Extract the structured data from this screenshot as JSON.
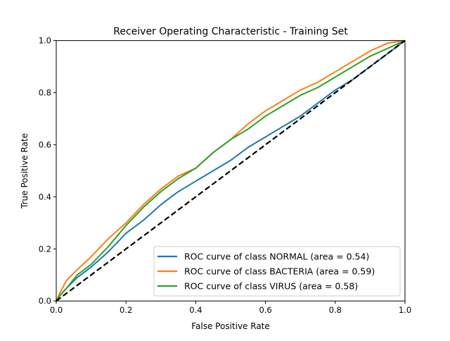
{
  "chart_data": {
    "type": "line",
    "title": "Receiver Operating Characteristic - Training Set",
    "xlabel": "False Positive Rate",
    "ylabel": "True Positive Rate",
    "xlim": [
      0.0,
      1.0
    ],
    "ylim": [
      0.0,
      1.0
    ],
    "xticks": [
      "0.0",
      "0.2",
      "0.4",
      "0.6",
      "0.8",
      "1.0"
    ],
    "yticks": [
      "0.0",
      "0.2",
      "0.4",
      "0.6",
      "0.8",
      "1.0"
    ],
    "grid": false,
    "legend_position": "lower-right",
    "series": [
      {
        "name": "ROC curve of class NORMAL (area = 0.54)",
        "color": "#1f77b4",
        "x": [
          0,
          0.01,
          0.03,
          0.06,
          0.1,
          0.15,
          0.2,
          0.25,
          0.3,
          0.35,
          0.4,
          0.45,
          0.5,
          0.55,
          0.6,
          0.65,
          0.7,
          0.75,
          0.8,
          0.85,
          0.9,
          0.95,
          1.0
        ],
        "y": [
          0,
          0.02,
          0.05,
          0.09,
          0.13,
          0.19,
          0.26,
          0.31,
          0.37,
          0.42,
          0.46,
          0.5,
          0.54,
          0.59,
          0.63,
          0.67,
          0.71,
          0.76,
          0.81,
          0.85,
          0.9,
          0.95,
          1.0
        ]
      },
      {
        "name": "ROC curve of class BACTERIA (area = 0.59)",
        "color": "#ff7f0e",
        "x": [
          0,
          0.01,
          0.03,
          0.06,
          0.1,
          0.15,
          0.2,
          0.25,
          0.3,
          0.35,
          0.4,
          0.45,
          0.5,
          0.55,
          0.6,
          0.65,
          0.7,
          0.75,
          0.8,
          0.85,
          0.9,
          0.95,
          1.0
        ],
        "y": [
          0,
          0.03,
          0.08,
          0.12,
          0.17,
          0.24,
          0.3,
          0.37,
          0.43,
          0.48,
          0.51,
          0.57,
          0.62,
          0.68,
          0.73,
          0.77,
          0.81,
          0.84,
          0.88,
          0.92,
          0.96,
          0.99,
          1.0
        ]
      },
      {
        "name": "ROC curve of class VIRUS (area = 0.58)",
        "color": "#2ca02c",
        "x": [
          0,
          0.01,
          0.03,
          0.06,
          0.1,
          0.15,
          0.2,
          0.25,
          0.3,
          0.35,
          0.4,
          0.45,
          0.5,
          0.55,
          0.6,
          0.65,
          0.7,
          0.75,
          0.8,
          0.85,
          0.9,
          0.95,
          1.0
        ],
        "y": [
          0,
          0.02,
          0.05,
          0.1,
          0.14,
          0.21,
          0.29,
          0.36,
          0.42,
          0.47,
          0.51,
          0.57,
          0.62,
          0.66,
          0.71,
          0.75,
          0.79,
          0.82,
          0.86,
          0.9,
          0.94,
          0.97,
          1.0
        ]
      },
      {
        "name": "",
        "color": "#000000",
        "style": "dashed",
        "x": [
          0,
          1
        ],
        "y": [
          0,
          1
        ]
      }
    ]
  }
}
